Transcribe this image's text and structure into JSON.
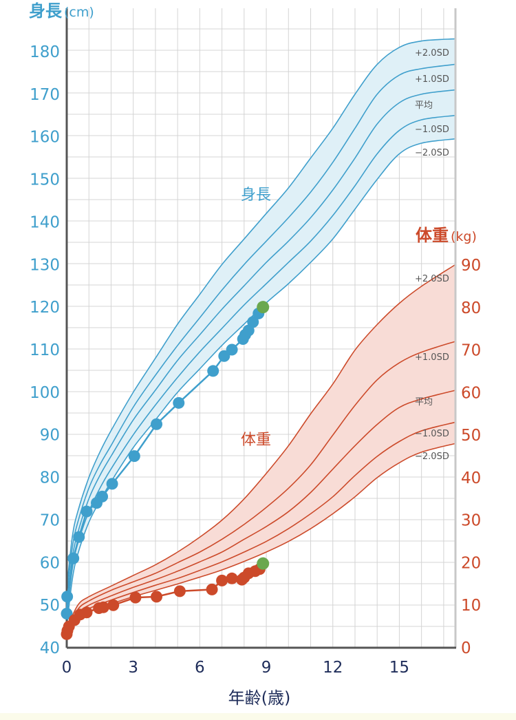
{
  "chart_data": {
    "type": "line",
    "xlabel": "年齢(歳)",
    "x_ticks": [
      0,
      3,
      6,
      9,
      12,
      15
    ],
    "xlim": [
      0,
      17.5
    ],
    "height_axis": {
      "title": "身長",
      "unit": "(cm)",
      "ylim": [
        40,
        180
      ],
      "ticks": [
        40,
        50,
        60,
        70,
        80,
        90,
        100,
        110,
        120,
        130,
        140,
        150,
        160,
        170,
        180
      ]
    },
    "weight_axis": {
      "title": "体重",
      "unit": "(kg)",
      "ylim": [
        0,
        90
      ],
      "ticks": [
        0,
        10,
        20,
        30,
        40,
        50,
        60,
        70,
        80,
        90
      ]
    },
    "height_label": "身長",
    "weight_label": "体重",
    "colors": {
      "height": "#3f9fcc",
      "height_band": "#dff0f7",
      "weight": "#cc4a2a",
      "weight_band": "#f8dcd6",
      "latest": "#6aa84f",
      "grid": "#d4d4d4"
    },
    "height_curves": [
      {
        "label": "+2.0SD",
        "x": [
          0,
          0.25,
          0.5,
          1,
          1.5,
          2,
          3,
          4,
          5,
          6,
          7,
          8,
          9,
          10,
          11,
          12,
          13,
          14,
          15,
          16,
          17.5
        ],
        "y": [
          54,
          66,
          72,
          80,
          86,
          91,
          100,
          108,
          116,
          123,
          130,
          136,
          142,
          148,
          155,
          162,
          170,
          177,
          181,
          182.5,
          183
        ]
      },
      {
        "label": "+1.0SD",
        "x": [
          0,
          0.25,
          0.5,
          1,
          1.5,
          2,
          3,
          4,
          5,
          6,
          7,
          8,
          9,
          10,
          11,
          12,
          13,
          14,
          15,
          16,
          17.5
        ],
        "y": [
          52,
          63.5,
          69.5,
          77.5,
          83,
          87.5,
          96.5,
          104,
          111,
          117.5,
          124,
          130,
          135.5,
          141,
          147,
          154,
          162,
          170,
          174.5,
          176,
          177
        ]
      },
      {
        "label": "平均",
        "x": [
          0,
          0.25,
          0.5,
          1,
          1.5,
          2,
          3,
          4,
          5,
          6,
          7,
          8,
          9,
          10,
          11,
          12,
          13,
          14,
          15,
          16,
          17.5
        ],
        "y": [
          49.5,
          61,
          67,
          75,
          80.5,
          85,
          93.5,
          100.5,
          107.5,
          113.5,
          119.5,
          125,
          130.5,
          135.5,
          141,
          147.5,
          155,
          163,
          168,
          170,
          171
        ]
      },
      {
        "label": "−1.0SD",
        "x": [
          0,
          0.25,
          0.5,
          1,
          1.5,
          2,
          3,
          4,
          5,
          6,
          7,
          8,
          9,
          10,
          11,
          12,
          13,
          14,
          15,
          16,
          17.5
        ],
        "y": [
          47,
          58.5,
          64.5,
          72,
          77.5,
          82,
          90,
          97,
          103.5,
          109.5,
          115,
          120.5,
          125.5,
          130.5,
          135.5,
          141.5,
          148.5,
          156,
          161.5,
          164,
          165
        ]
      },
      {
        "label": "−2.0SD",
        "x": [
          0,
          0.25,
          0.5,
          1,
          1.5,
          2,
          3,
          4,
          5,
          6,
          7,
          8,
          9,
          10,
          11,
          12,
          13,
          14,
          15,
          16,
          17.5
        ],
        "y": [
          45,
          56,
          62,
          69.5,
          74.5,
          79,
          87,
          93.5,
          100,
          105.5,
          111,
          116,
          121,
          125.5,
          130.5,
          136,
          143,
          150,
          156,
          158.5,
          159.5
        ]
      }
    ],
    "weight_curves": [
      {
        "label": "+2.0SD",
        "x": [
          0,
          0.5,
          1,
          2,
          3,
          4,
          5,
          6,
          7,
          8,
          9,
          10,
          11,
          12,
          13,
          14,
          15,
          16,
          17.5
        ],
        "y": [
          4.5,
          10,
          12,
          14.5,
          17,
          19.5,
          22.5,
          26,
          30,
          35,
          41,
          47.5,
          55,
          62,
          70,
          76,
          81,
          85,
          90
        ]
      },
      {
        "label": "+1.0SD",
        "x": [
          0,
          0.5,
          1,
          2,
          3,
          4,
          5,
          6,
          7,
          8,
          9,
          10,
          11,
          12,
          13,
          14,
          15,
          16,
          17.5
        ],
        "y": [
          4,
          9,
          11,
          13.5,
          15.5,
          17.5,
          20,
          22.5,
          25.5,
          29,
          33,
          37.5,
          43,
          50,
          57,
          63,
          67,
          69.5,
          72
        ]
      },
      {
        "label": "平均",
        "x": [
          0,
          0.5,
          1,
          2,
          3,
          4,
          5,
          6,
          7,
          8,
          9,
          10,
          11,
          12,
          13,
          14,
          15,
          16,
          17.5
        ],
        "y": [
          3.3,
          8,
          10,
          12.2,
          14.2,
          16,
          18,
          20.2,
          22.5,
          25.5,
          28.5,
          32,
          36.5,
          42,
          47.5,
          52.5,
          56.5,
          58.5,
          60.5
        ]
      },
      {
        "label": "−1.0SD",
        "x": [
          0,
          0.5,
          1,
          2,
          3,
          4,
          5,
          6,
          7,
          8,
          9,
          10,
          11,
          12,
          13,
          14,
          15,
          16,
          17.5
        ],
        "y": [
          3,
          7.3,
          9.2,
          11.2,
          13,
          14.7,
          16.3,
          18.2,
          20.2,
          22.5,
          25,
          28,
          31.5,
          35.5,
          40.5,
          45,
          48.5,
          51,
          53
        ]
      },
      {
        "label": "−2.0SD",
        "x": [
          0,
          0.5,
          1,
          2,
          3,
          4,
          5,
          6,
          7,
          8,
          9,
          10,
          11,
          12,
          13,
          14,
          15,
          16,
          17.5
        ],
        "y": [
          2.6,
          6.6,
          8.5,
          10.3,
          12,
          13.5,
          15,
          16.6,
          18.3,
          20.3,
          22.5,
          25,
          28,
          31.5,
          35.5,
          40,
          43.5,
          46,
          48
        ]
      }
    ],
    "height_measurements": {
      "x": [
        0,
        0.02,
        0.3,
        0.55,
        0.9,
        1.35,
        1.6,
        2.05,
        3.05,
        4.05,
        5.05,
        6.6,
        7.1,
        7.45,
        7.95,
        8.05,
        8.2,
        8.4,
        8.65
      ],
      "y": [
        48,
        52,
        61,
        66,
        72,
        74,
        75.5,
        78.5,
        85,
        92.5,
        97.5,
        105,
        108.5,
        110,
        112.5,
        113.5,
        114.5,
        116.5,
        118.5
      ]
    },
    "weight_measurements": {
      "x": [
        0,
        0.03,
        0.1,
        0.35,
        0.6,
        0.9,
        1.45,
        1.65,
        2.1,
        3.1,
        4.05,
        5.1,
        6.55,
        7.0,
        7.45,
        7.9,
        8.0,
        8.2,
        8.5,
        8.7
      ],
      "y": [
        3.2,
        4,
        5,
        6.5,
        7.8,
        8.3,
        9.3,
        9.5,
        10,
        11.8,
        12,
        13.3,
        13.7,
        15.8,
        16.3,
        16,
        16.5,
        17.5,
        18,
        18.5
      ]
    },
    "latest_height": {
      "x": 8.85,
      "y": 120
    },
    "latest_weight": {
      "x": 8.85,
      "y": 19.8
    }
  }
}
